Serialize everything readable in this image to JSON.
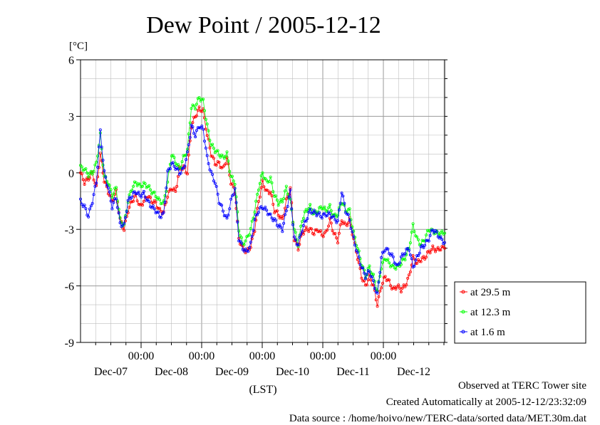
{
  "chart_data": {
    "type": "line",
    "title": "Dew Point / 2005-12-12",
    "ylabel": "[°C]",
    "xlabel": "(LST)",
    "ylim": [
      -9,
      6
    ],
    "yticks": [
      6,
      3,
      0,
      -3,
      -6,
      -9
    ],
    "x_ticks": [
      {
        "time": "00:00",
        "date": "Dec-07"
      },
      {
        "time": "00:00",
        "date": "Dec-08"
      },
      {
        "time": "00:00",
        "date": "Dec-09"
      },
      {
        "time": "00:00",
        "date": "Dec-10"
      },
      {
        "time": "00:00",
        "date": "Dec-11"
      },
      {
        "time": "00:00",
        "date": "Dec-12"
      }
    ],
    "grid": true,
    "legend_position": "right",
    "series": [
      {
        "name": "at 29.5 m",
        "color": "#ff0000",
        "values": [
          0.0,
          -0.5,
          -0.3,
          0.0,
          -0.8,
          1.0,
          -0.4,
          -1.0,
          -1.5,
          -1.0,
          -2.5,
          -3.0,
          -2.0,
          -1.5,
          -1.2,
          -1.8,
          -1.5,
          -1.2,
          -1.5,
          -1.6,
          -2.0,
          -2.1,
          -1.2,
          -0.8,
          -1.0,
          0.2,
          0.3,
          0.0,
          2.5,
          3.0,
          3.4,
          3.3,
          2.0,
          1.0,
          0.5,
          0.5,
          0.2,
          0.8,
          -0.5,
          -1.0,
          -3.5,
          -4.0,
          -4.2,
          -3.9,
          -3.0,
          -1.5,
          -0.5,
          -1.0,
          -1.0,
          -2.0,
          -2.2,
          -2.5,
          -1.5,
          -0.8,
          -3.5,
          -4.0,
          -3.2,
          -3.0,
          -3.0,
          -3.2,
          -3.0,
          -3.3,
          -3.2,
          -2.5,
          -3.2,
          -3.6,
          -2.5,
          -2.8,
          -2.5,
          -3.5,
          -4.5,
          -5.5,
          -6.0,
          -5.5,
          -6.0,
          -7.0,
          -6.0,
          -5.5,
          -5.8,
          -6.2,
          -6.0,
          -6.2,
          -6.0,
          -5.5,
          -4.5,
          -4.8,
          -4.6,
          -4.5,
          -4.2,
          -4.0,
          -4.1,
          -4.0,
          -4.0
        ]
      },
      {
        "name": "at 12.3 m",
        "color": "#00ff00",
        "values": [
          0.3,
          0.2,
          -0.1,
          0.0,
          0.5,
          2.0,
          -0.2,
          -0.5,
          -1.2,
          -0.8,
          -2.5,
          -2.8,
          -1.5,
          -0.8,
          -0.5,
          -0.7,
          -0.6,
          -0.7,
          -1.0,
          -1.2,
          -1.5,
          -1.6,
          -0.5,
          1.0,
          0.6,
          0.2,
          0.8,
          1.2,
          3.5,
          3.5,
          4.0,
          3.8,
          2.5,
          1.5,
          1.2,
          1.0,
          0.8,
          1.0,
          -0.2,
          -0.5,
          -3.0,
          -3.8,
          -3.5,
          -3.0,
          -2.0,
          -0.8,
          0.0,
          -0.5,
          -0.3,
          -1.2,
          -1.6,
          -1.5,
          -0.8,
          -1.5,
          -3.0,
          -3.8,
          -2.5,
          -2.0,
          -1.8,
          -2.2,
          -2.0,
          -1.8,
          -2.0,
          -1.8,
          -2.3,
          -2.2,
          -1.5,
          -2.0,
          -2.0,
          -3.2,
          -4.0,
          -4.8,
          -5.5,
          -5.0,
          -5.5,
          -6.3,
          -5.0,
          -4.5,
          -4.8,
          -5.0,
          -5.0,
          -4.8,
          -4.5,
          -4.0,
          -2.8,
          -3.5,
          -3.8,
          -3.5,
          -3.0,
          -3.1,
          -3.2,
          -3.2,
          -3.2
        ]
      },
      {
        "name": "at 1.6 m",
        "color": "#0000ff",
        "values": [
          -1.5,
          -1.8,
          -2.3,
          -1.5,
          -0.5,
          2.2,
          0.0,
          -0.8,
          -1.8,
          -1.3,
          -2.7,
          -2.8,
          -1.5,
          -1.2,
          -1.0,
          -1.2,
          -1.1,
          -1.5,
          -1.8,
          -2.0,
          -2.3,
          -2.2,
          0.0,
          0.5,
          0.3,
          0.0,
          0.2,
          1.0,
          2.5,
          2.0,
          2.5,
          2.3,
          0.8,
          0.0,
          -0.5,
          -1.5,
          -2.0,
          -2.5,
          -1.5,
          -0.8,
          -3.5,
          -4.0,
          -4.2,
          -3.8,
          -2.5,
          -2.0,
          -1.8,
          -2.0,
          -2.3,
          -2.5,
          -2.8,
          -3.0,
          -2.0,
          -1.0,
          -3.5,
          -3.8,
          -3.0,
          -2.5,
          -2.0,
          -2.1,
          -2.2,
          -2.3,
          -2.2,
          -2.2,
          -2.4,
          -2.6,
          -1.0,
          -2.0,
          -2.5,
          -3.5,
          -4.3,
          -5.0,
          -5.5,
          -5.2,
          -5.8,
          -6.5,
          -4.5,
          -4.0,
          -4.2,
          -4.5,
          -5.0,
          -4.5,
          -4.2,
          -4.0,
          -5.0,
          -4.5,
          -4.0,
          -3.8,
          -3.5,
          -3.0,
          -3.2,
          -3.5,
          -3.7
        ]
      }
    ]
  },
  "footer": {
    "observed": "Observed at TERC Tower site",
    "created": "Created Automatically at 2005-12-12/23:32:09",
    "source": "Data source : /home/hoivo/new/TERC-data/sorted  data/MET.30m.dat"
  }
}
